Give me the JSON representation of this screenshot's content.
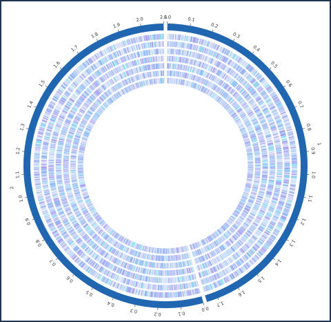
{
  "colors": {
    "frame": "#1f3550",
    "ideogram": "#2066b0",
    "feature_purple": "#a59bf2",
    "feature_blue": "#8cb2f5",
    "feature_cyan": "#86dcf0",
    "feature_light": "#b9d2fb",
    "track_background": "#ffffff"
  },
  "chart_data": {
    "type": "circos",
    "title": "",
    "tracks_count": 7,
    "chromosomes": [
      {
        "name": "1",
        "length_mb": 1.75,
        "tick_labels": [
          "0.0",
          "0.1",
          "0.2",
          "0.3",
          "0.4",
          "0.5",
          "0.6",
          "0.7",
          "0.8",
          "0.9",
          "1.0",
          "1.1",
          "1.2",
          "1.3",
          "1.4",
          "1.5",
          "1.6",
          "1.7"
        ],
        "name_label": "1"
      },
      {
        "name": "2",
        "length_mb": 2.1,
        "tick_labels": [
          "0.0",
          "0.1",
          "0.2",
          "0.3",
          "0.4",
          "0.5",
          "0.6",
          "0.7",
          "0.8",
          "0.9",
          "1.0",
          "1.1",
          "1.2",
          "1.3",
          "1.4",
          "1.5",
          "1.6",
          "1.7",
          "1.8",
          "1.9",
          "2.0",
          "2.1"
        ],
        "name_label": "2"
      }
    ]
  }
}
